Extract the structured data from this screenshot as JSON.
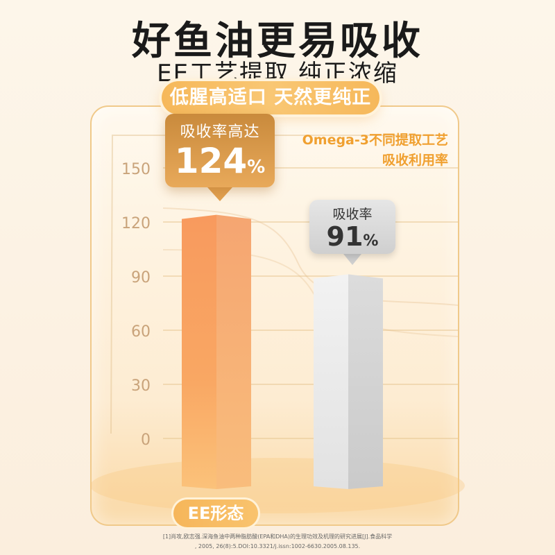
{
  "header": {
    "headline": "好鱼油更易吸收",
    "subhead": "EE工艺提取 纯正浓缩",
    "tag": "低腥高适口 天然更纯正"
  },
  "legend": {
    "line1": "Omega-3不同提取工艺",
    "line2": "吸收利用率"
  },
  "callouts": {
    "ee": {
      "label": "吸收率高达",
      "value": "124",
      "unit": "%"
    },
    "other": {
      "label": "吸收率",
      "value": "91",
      "unit": "%"
    }
  },
  "category_labels": {
    "ee": "EE形态"
  },
  "footnote": {
    "line1": "[1]肖攻,欧志强.深海鱼油中两种脂肪酸(EPA和DHA)的生理功效及机理的研究进展[J].食品科学",
    "line2": ", 2005, 26(8):5.DOI:10.3321/j.issn:1002-6630.2005.08.135."
  },
  "colors": {
    "ee_bar": "#f6a465",
    "other_bar": "#e8e8e8",
    "accent": "#f0a030",
    "axis_text": "#c9a37a"
  },
  "chart_data": {
    "type": "bar",
    "categories": [
      "EE形态",
      ""
    ],
    "values": [
      124,
      91
    ],
    "ylim": [
      0,
      150
    ],
    "yticks": [
      0,
      30,
      60,
      90,
      120,
      150
    ],
    "title": "Omega-3不同提取工艺 吸收利用率",
    "xlabel": "",
    "ylabel": ""
  }
}
